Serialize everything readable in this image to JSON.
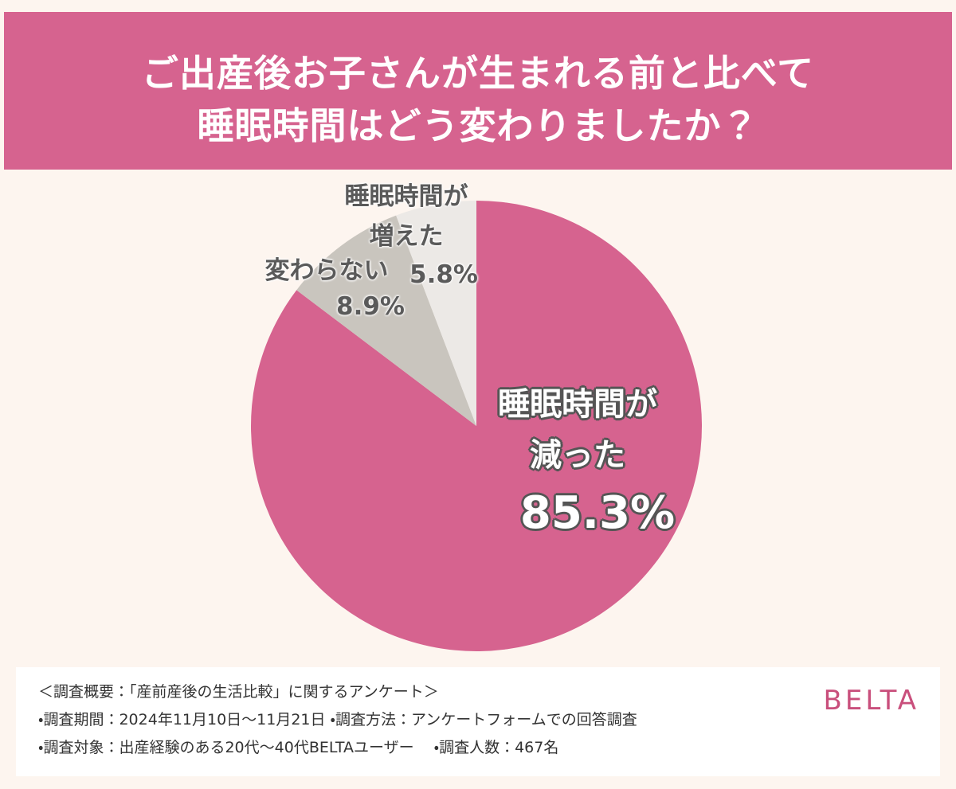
{
  "chart_data": {
    "type": "pie",
    "title": "ご出産後お子さんが生まれる前と比べて\n睡眠時間はどう変わりましたか？",
    "categories": [
      "睡眠時間が\n減った",
      "変わらない",
      "睡眠時間が\n増えた"
    ],
    "values": [
      85.3,
      8.9,
      5.8
    ],
    "value_labels": [
      "85.3%",
      "8.9%",
      "5.8%"
    ],
    "colors": [
      "#d6638f",
      "#c9c5be",
      "#ece9e6"
    ]
  },
  "notes": [
    "＜調査概要：「産前産後の生活比較」に関するアンケート＞",
    "・調査期間：2024年11月10日〜11月21日 ・調査方法：アンケートフォームでの回答調査",
    "・調査対象：出産経験のある20代〜40代BELTAユーザー　 ・調査人数：467名"
  ],
  "logo": "BELTA"
}
